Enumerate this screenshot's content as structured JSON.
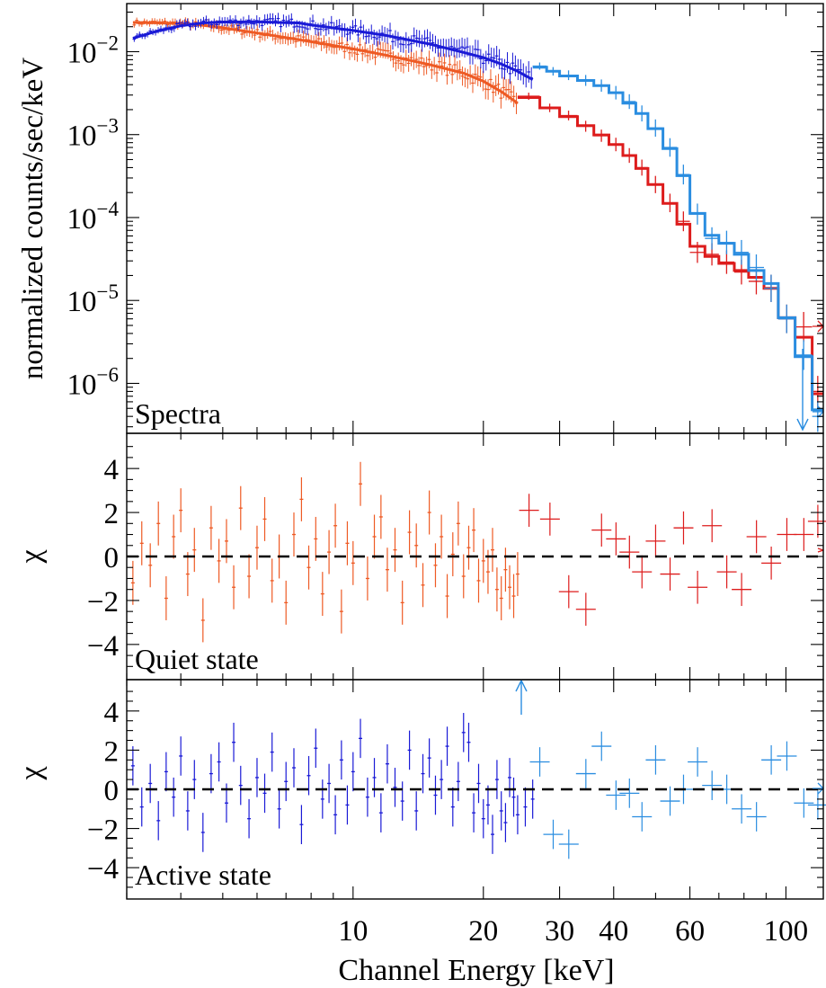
{
  "colors": {
    "quiet_low": "#ee5a24",
    "quiet_high": "#dd1c1c",
    "active_low": "#1a1ad6",
    "active_high": "#2a8de0",
    "axis": "#000000"
  },
  "xaxis": {
    "label": "Channel Energy [keV]",
    "scale": "log",
    "range": [
      3.0,
      122
    ],
    "tick_labels": [
      "10",
      "20",
      "30",
      "40",
      "60",
      "100"
    ]
  },
  "chart_data": [
    {
      "panel": "spectra",
      "type": "line",
      "label": "Spectra",
      "ylabel": "normalized counts/sec/keV",
      "yscale": "log",
      "ylim": [
        2.5e-07,
        0.038
      ],
      "ytick_labels": [
        "10−2",
        "10−3",
        "10−4",
        "10−5",
        "10−6"
      ],
      "series": [
        {
          "group": "quiet",
          "instrument": "low-energy",
          "color_key": "quiet_low",
          "style": "points-with-model-curve",
          "x": [
            3.1,
            3.5,
            4.0,
            4.5,
            5.0,
            6.0,
            7.0,
            8.0,
            10.0,
            12.0,
            15.0,
            18.0,
            20.0,
            22.0,
            24.0
          ],
          "model": [
            0.0225,
            0.0223,
            0.0219,
            0.0208,
            0.0194,
            0.0168,
            0.0148,
            0.0132,
            0.0108,
            0.009,
            0.007,
            0.0055,
            0.0044,
            0.0033,
            0.0024
          ]
        },
        {
          "group": "active",
          "instrument": "low-energy",
          "color_key": "active_low",
          "style": "points-with-model-curve",
          "x": [
            3.1,
            3.5,
            4.0,
            4.5,
            5.0,
            6.0,
            7.0,
            7.5,
            8.0,
            10.0,
            12.0,
            15.0,
            18.0,
            20.0,
            22.0,
            24.0,
            26.0
          ],
          "model": [
            0.0145,
            0.0175,
            0.0205,
            0.0222,
            0.0228,
            0.0229,
            0.0224,
            0.0222,
            0.021,
            0.018,
            0.0156,
            0.0124,
            0.0098,
            0.0085,
            0.0071,
            0.0058,
            0.0046
          ]
        },
        {
          "group": "quiet",
          "instrument": "high-energy",
          "color_key": "quiet_high",
          "style": "step-model-with-crosses",
          "edges": [
            24,
            27,
            30,
            33,
            36,
            39,
            42,
            45,
            48,
            52,
            56,
            60,
            65,
            70,
            76,
            82,
            89,
            96,
            105,
            115,
            122
          ],
          "model": [
            0.0028,
            0.0021,
            0.00165,
            0.00128,
            0.00099,
            0.00076,
            0.00056,
            0.00039,
            0.00025,
            0.000148,
            8.3e-05,
            4.5e-05,
            3.4e-05,
            2.8e-05,
            2.3e-05,
            1.9e-05,
            1.4e-05,
            6.2e-06,
            3.6e-06,
            7.5e-07
          ],
          "data": [
            0.0029,
            0.0021,
            0.0017,
            0.00126,
            0.00097,
            0.00076,
            0.00056,
            0.0004,
            0.00025,
            0.00015,
            9e-05,
            3.8e-05,
            3.6e-05,
            2.9e-05,
            2.2e-05,
            1.7e-05,
            1.4e-05,
            6e-06,
            4.8e-06,
            8e-07
          ]
        },
        {
          "group": "active",
          "instrument": "high-energy",
          "color_key": "active_high",
          "style": "step-model-with-crosses",
          "edges": [
            26,
            28,
            30,
            33,
            36,
            39,
            42,
            45,
            48,
            52,
            56,
            60,
            65,
            70,
            76,
            82,
            89,
            96,
            105,
            115,
            122
          ],
          "model": [
            0.0065,
            0.0058,
            0.0051,
            0.0045,
            0.0039,
            0.0032,
            0.0024,
            0.0018,
            0.00118,
            0.00068,
            0.00032,
            0.000112,
            6.1e-05,
            4.9e-05,
            3.6e-05,
            2.3e-05,
            1.6e-05,
            6.2e-06,
            2.1e-06,
            4.8e-07
          ],
          "data": [
            0.0067,
            0.0058,
            0.0052,
            0.0045,
            0.0039,
            0.0032,
            0.0025,
            0.0018,
            0.0012,
            0.0007,
            0.00033,
            0.00011,
            5.6e-05,
            5e-05,
            3.8e-05,
            2.5e-05,
            1.4e-05,
            6e-06,
            2.2e-06,
            4e-07
          ]
        }
      ]
    },
    {
      "panel": "residuals-quiet",
      "type": "scatter",
      "label": "Quiet state",
      "ylabel": "χ",
      "ylim": [
        -5.6,
        5.6
      ],
      "ytick_labels": [
        "4",
        "2",
        "0",
        "−2",
        "−4"
      ],
      "reference_line": 0,
      "series": [
        {
          "group": "quiet",
          "instrument": "low-energy",
          "color_key": "quiet_low",
          "x": [
            3.1,
            3.25,
            3.4,
            3.55,
            3.7,
            3.85,
            4.0,
            4.15,
            4.3,
            4.5,
            4.7,
            4.9,
            5.1,
            5.3,
            5.5,
            5.75,
            6.0,
            6.25,
            6.5,
            6.75,
            7.0,
            7.3,
            7.6,
            7.9,
            8.2,
            8.5,
            8.8,
            9.1,
            9.4,
            9.7,
            10.0,
            10.4,
            10.8,
            11.2,
            11.6,
            12.0,
            12.5,
            13.0,
            13.5,
            14.0,
            14.5,
            15.0,
            15.5,
            16.0,
            16.5,
            17.0,
            17.5,
            18.0,
            18.5,
            19.0,
            19.5,
            20.0,
            20.5,
            21.0,
            21.5,
            22.0,
            22.5,
            23.0,
            23.5,
            24.0
          ],
          "y": [
            -1.2,
            0.6,
            -0.4,
            1.5,
            -1.9,
            0.9,
            2.1,
            -0.8,
            0.3,
            -2.9,
            1.3,
            -0.2,
            0.7,
            -1.4,
            2.2,
            -0.9,
            0.4,
            1.7,
            -1.1,
            0.0,
            -2.1,
            1.0,
            2.6,
            -0.5,
            0.8,
            -1.7,
            0.2,
            1.4,
            -2.5,
            0.6,
            -0.3,
            3.3,
            -1.0,
            0.9,
            1.8,
            -0.6,
            0.3,
            -2.1,
            1.1,
            0.5,
            -1.3,
            2.0,
            -0.4,
            0.9,
            -1.8,
            0.1,
            1.5,
            -0.9,
            0.4,
            1.2,
            -1.1,
            -0.2,
            -0.7,
            0.3,
            -1.5,
            -1.9,
            -0.6,
            -1.4,
            -1.8,
            -0.8
          ],
          "err": [
            1.0,
            1.0,
            1.0,
            1.0,
            1.0,
            1.0,
            1.0,
            1.0,
            1.0,
            1.0,
            1.0,
            1.0,
            1.0,
            1.0,
            1.0,
            1.0,
            1.0,
            1.0,
            1.0,
            1.0,
            1.0,
            1.0,
            1.0,
            1.0,
            1.0,
            1.0,
            1.0,
            1.0,
            1.0,
            1.0,
            1.0,
            1.0,
            1.0,
            1.0,
            1.0,
            1.0,
            1.0,
            1.0,
            1.0,
            1.0,
            1.0,
            1.0,
            1.0,
            1.0,
            1.0,
            1.0,
            1.0,
            1.0,
            1.0,
            1.0,
            1.0,
            1.0,
            1.0,
            1.0,
            1.0,
            1.0,
            1.0,
            1.0,
            1.0,
            1.0
          ]
        },
        {
          "group": "quiet",
          "instrument": "high-energy",
          "color_key": "quiet_high",
          "x": [
            25.5,
            28.5,
            31.5,
            34.5,
            37.5,
            40.5,
            43.5,
            46.5,
            50.0,
            54.0,
            58.0,
            62.5,
            67.5,
            73.0,
            79.0,
            85.5,
            92.5,
            100.5,
            110.0,
            118.5
          ],
          "y": [
            2.1,
            1.7,
            -1.6,
            -2.4,
            1.2,
            0.8,
            0.2,
            -0.7,
            0.7,
            -0.8,
            1.3,
            -1.4,
            1.4,
            -0.7,
            -1.5,
            0.9,
            -0.3,
            1.0,
            1.0,
            1.6
          ],
          "err": [
            0.75,
            0.75,
            0.75,
            0.75,
            0.75,
            0.75,
            0.75,
            0.75,
            0.75,
            0.75,
            0.75,
            0.75,
            0.75,
            0.75,
            0.75,
            0.75,
            0.75,
            0.75,
            0.75,
            0.75
          ]
        }
      ]
    },
    {
      "panel": "residuals-active",
      "type": "scatter",
      "label": "Active state",
      "ylabel": "χ",
      "ylim": [
        -5.6,
        5.6
      ],
      "ytick_labels": [
        "4",
        "2",
        "0",
        "−2",
        "−4"
      ],
      "reference_line": 0,
      "series": [
        {
          "group": "active",
          "instrument": "low-energy",
          "color_key": "active_low",
          "x": [
            3.1,
            3.25,
            3.4,
            3.55,
            3.7,
            3.85,
            4.0,
            4.15,
            4.3,
            4.5,
            4.7,
            4.9,
            5.1,
            5.3,
            5.5,
            5.75,
            6.0,
            6.25,
            6.5,
            6.75,
            7.0,
            7.3,
            7.6,
            7.9,
            8.2,
            8.5,
            8.8,
            9.1,
            9.4,
            9.7,
            10.0,
            10.4,
            10.8,
            11.2,
            11.6,
            12.0,
            12.5,
            13.0,
            13.5,
            14.0,
            14.5,
            15.0,
            15.5,
            16.0,
            16.5,
            17.0,
            17.5,
            18.0,
            18.5,
            19.0,
            19.5,
            20.0,
            20.5,
            21.0,
            21.5,
            22.0,
            22.5,
            23.0,
            23.5,
            24.0,
            25.0,
            26.0
          ],
          "y": [
            1.2,
            -0.9,
            0.3,
            -1.6,
            0.9,
            -0.4,
            1.7,
            -1.1,
            0.5,
            -2.2,
            0.8,
            1.4,
            -0.7,
            2.4,
            0.2,
            -1.5,
            0.6,
            -0.2,
            1.9,
            -1.0,
            0.4,
            1.1,
            -1.8,
            0.7,
            2.1,
            -0.5,
            0.3,
            -1.3,
            1.5,
            -0.8,
            0.9,
            2.6,
            -0.4,
            0.6,
            -1.2,
            1.3,
            0.1,
            -0.6,
            2.0,
            -1.1,
            0.8,
            1.6,
            -0.3,
            0.5,
            2.2,
            -0.9,
            0.4,
            2.9,
            2.4,
            -1.2,
            0.3,
            -1.5,
            -0.8,
            -2.3,
            0.5,
            -1.1,
            -1.7,
            0.6,
            -0.4,
            -1.3,
            -0.9,
            -0.5
          ],
          "err": [
            1.0,
            1.0,
            1.0,
            1.0,
            1.0,
            1.0,
            1.0,
            1.0,
            1.0,
            1.0,
            1.0,
            1.0,
            1.0,
            1.0,
            1.0,
            1.0,
            1.0,
            1.0,
            1.0,
            1.0,
            1.0,
            1.0,
            1.0,
            1.0,
            1.0,
            1.0,
            1.0,
            1.0,
            1.0,
            1.0,
            1.0,
            1.0,
            1.0,
            1.0,
            1.0,
            1.0,
            1.0,
            1.0,
            1.0,
            1.0,
            1.0,
            1.0,
            1.0,
            1.0,
            1.0,
            1.0,
            1.0,
            1.0,
            1.0,
            1.0,
            1.0,
            1.0,
            1.0,
            1.0,
            1.0,
            1.0,
            1.0,
            1.0,
            1.0,
            1.0,
            1.0,
            1.0
          ]
        },
        {
          "group": "active",
          "instrument": "high-energy",
          "color_key": "active_high",
          "x": [
            27.0,
            29.0,
            31.5,
            34.5,
            37.5,
            40.5,
            43.5,
            46.5,
            50.0,
            54.0,
            58.0,
            62.5,
            67.5,
            73.0,
            79.0,
            85.5,
            92.5,
            100.5,
            110.0,
            118.5
          ],
          "y": [
            1.4,
            -2.3,
            -2.8,
            0.8,
            2.2,
            -0.3,
            -0.2,
            -1.4,
            1.5,
            -0.6,
            0.0,
            1.4,
            0.2,
            0.0,
            -1.0,
            -1.4,
            1.5,
            1.7,
            -0.7,
            -0.8
          ],
          "err": [
            0.75,
            0.75,
            0.75,
            0.75,
            0.75,
            0.75,
            0.75,
            0.75,
            0.75,
            0.75,
            0.75,
            0.75,
            0.75,
            0.75,
            0.75,
            0.75,
            0.75,
            0.75,
            0.75,
            0.75
          ]
        }
      ]
    }
  ]
}
